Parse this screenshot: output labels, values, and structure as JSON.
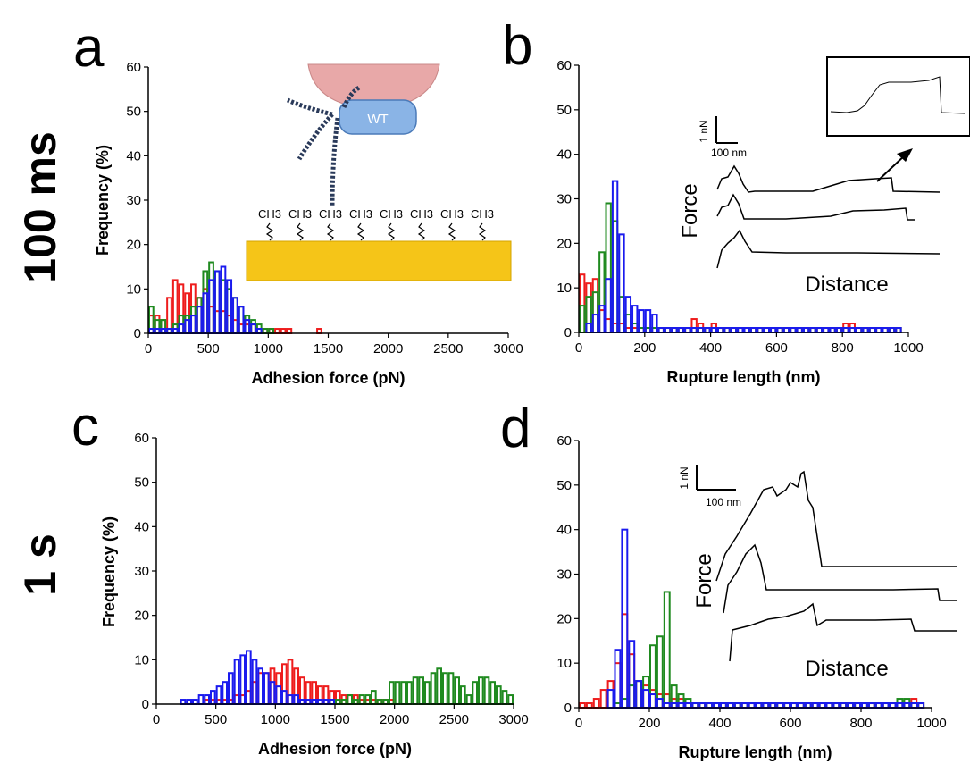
{
  "rows": {
    "top": "100 ms",
    "bottom": "1 s"
  },
  "colors": {
    "red": "#ee1c1c",
    "green": "#1f8a1f",
    "blue": "#1a1aee"
  },
  "chart_data": [
    {
      "id": "a",
      "letter": "a",
      "type": "bar",
      "xlabel": "Adhesion force (pN)",
      "ylabel": "Frequency (%)",
      "xlim": [
        0,
        3000
      ],
      "ylim": [
        0,
        60
      ],
      "xticks": [
        0,
        500,
        1000,
        1500,
        2000,
        2500,
        3000
      ],
      "yticks": [
        0,
        10,
        20,
        30,
        40,
        50,
        60
      ],
      "bin_width": 50,
      "series": [
        {
          "color": "red",
          "start": 0,
          "values": [
            4,
            4,
            3,
            8,
            12,
            11,
            9,
            11,
            8,
            10,
            6,
            5,
            5,
            4,
            3,
            2,
            2,
            2,
            1,
            1,
            1,
            1,
            1,
            1,
            0,
            0,
            0,
            0,
            1,
            0,
            0
          ]
        },
        {
          "color": "green",
          "start": 0,
          "values": [
            6,
            3,
            3,
            1,
            2,
            4,
            4,
            6,
            8,
            14,
            16,
            14,
            12,
            10,
            8,
            6,
            4,
            3,
            2,
            1,
            1
          ]
        },
        {
          "color": "blue",
          "start": 0,
          "values": [
            1,
            1,
            1,
            1,
            1,
            2,
            3,
            4,
            6,
            9,
            12,
            14,
            15,
            12,
            8,
            6,
            3,
            2,
            1
          ]
        }
      ],
      "inset": {
        "protein_label": "WT",
        "chem_label": "CH3"
      }
    },
    {
      "id": "b",
      "letter": "b",
      "type": "bar",
      "xlabel": "Rupture length (nm)",
      "ylabel": "",
      "xlim": [
        0,
        1000
      ],
      "ylim": [
        0,
        60
      ],
      "xticks": [
        0,
        200,
        400,
        600,
        800,
        1000
      ],
      "yticks": [
        0,
        10,
        20,
        30,
        40,
        50,
        60
      ],
      "bin_width": 20,
      "series": [
        {
          "color": "red",
          "start": 0,
          "values": [
            13,
            11,
            12,
            5,
            3,
            2,
            2,
            1,
            1,
            1,
            1,
            1,
            1,
            1,
            1,
            1,
            1,
            3,
            2,
            1,
            2,
            1,
            1,
            1,
            1,
            1,
            1,
            1,
            1,
            1,
            1,
            1,
            1,
            1,
            1,
            1,
            1,
            1,
            1,
            1,
            2,
            2,
            1,
            1,
            1,
            1,
            1,
            1,
            1
          ]
        },
        {
          "color": "green",
          "start": 0,
          "values": [
            6,
            8,
            9,
            18,
            29,
            25,
            8,
            4,
            2,
            1,
            1,
            1,
            1,
            1,
            1,
            1,
            1,
            1,
            1,
            1,
            1,
            1,
            1,
            1,
            1,
            1,
            1,
            1,
            1,
            1,
            1,
            1,
            1,
            1,
            1,
            1,
            1,
            1,
            1,
            1,
            1,
            1,
            1,
            1,
            1,
            1,
            1,
            1,
            1
          ]
        },
        {
          "color": "blue",
          "start": 0,
          "values": [
            0,
            2,
            4,
            6,
            12,
            34,
            22,
            8,
            6,
            5,
            5,
            4,
            1,
            1,
            1,
            1,
            1,
            1,
            1,
            1,
            1,
            1,
            1,
            1,
            1,
            1,
            1,
            1,
            1,
            1,
            1,
            1,
            1,
            1,
            1,
            1,
            1,
            1,
            1,
            1,
            1,
            1,
            1,
            1,
            1,
            1,
            1,
            1,
            1
          ]
        }
      ],
      "inset": {
        "force_label": "Force",
        "distance_label": "Distance",
        "scale_y": "1 nN",
        "scale_x": "100 nm"
      }
    },
    {
      "id": "c",
      "letter": "c",
      "type": "bar",
      "xlabel": "Adhesion force (pN)",
      "ylabel": "Frequency (%)",
      "xlim": [
        0,
        3000
      ],
      "ylim": [
        0,
        60
      ],
      "xticks": [
        0,
        500,
        1000,
        1500,
        2000,
        2500,
        3000
      ],
      "yticks": [
        0,
        10,
        20,
        30,
        40,
        50,
        60
      ],
      "bin_width": 50,
      "series": [
        {
          "color": "red",
          "start": 0,
          "values": [
            0,
            0,
            0,
            0,
            0,
            0,
            0,
            0,
            1,
            1,
            1,
            1,
            1,
            2,
            2,
            3,
            5,
            7,
            7,
            8,
            7,
            9,
            10,
            8,
            6,
            5,
            5,
            4,
            4,
            3,
            3,
            2,
            2,
            2,
            1,
            1,
            1,
            1,
            1,
            1,
            0,
            0
          ]
        },
        {
          "color": "green",
          "start": 0,
          "values": [
            0,
            0,
            0,
            0,
            0,
            0,
            0,
            0,
            0,
            0,
            0,
            0,
            0,
            0,
            0,
            0,
            0,
            0,
            0,
            0,
            0,
            0,
            0,
            0,
            0,
            0,
            0,
            0,
            0,
            1,
            1,
            1,
            2,
            1,
            2,
            2,
            3,
            1,
            1,
            5,
            5,
            5,
            5,
            6,
            6,
            5,
            7,
            8,
            7,
            7,
            6,
            4,
            2,
            5,
            6,
            6,
            5,
            4,
            3,
            2
          ]
        },
        {
          "color": "blue",
          "start": 0,
          "values": [
            0,
            0,
            0,
            0,
            1,
            1,
            1,
            2,
            2,
            3,
            4,
            5,
            7,
            10,
            11,
            12,
            10,
            8,
            7,
            5,
            4,
            3,
            2,
            2,
            1,
            1,
            1,
            1,
            1,
            1,
            0,
            0
          ]
        }
      ]
    },
    {
      "id": "d",
      "letter": "d",
      "type": "bar",
      "xlabel": "Rupture length (nm)",
      "ylabel": "",
      "xlim": [
        0,
        1000
      ],
      "ylim": [
        0,
        60
      ],
      "xticks": [
        0,
        200,
        400,
        600,
        800,
        1000
      ],
      "yticks": [
        0,
        10,
        20,
        30,
        40,
        50,
        60
      ],
      "bin_width": 20,
      "series": [
        {
          "color": "red",
          "start": 0,
          "values": [
            1,
            1,
            2,
            4,
            6,
            10,
            21,
            12,
            6,
            5,
            4,
            3,
            3,
            2,
            2,
            1,
            1,
            1,
            1,
            1,
            1,
            1,
            1,
            1,
            1,
            1,
            1,
            1,
            1,
            1,
            1,
            1,
            1,
            1,
            1,
            1,
            1,
            1,
            1,
            1,
            1,
            1,
            1,
            1,
            1,
            1,
            1,
            2,
            1
          ]
        },
        {
          "color": "green",
          "start": 0,
          "values": [
            0,
            0,
            0,
            0,
            0,
            1,
            2,
            5,
            6,
            7,
            14,
            16,
            26,
            5,
            3,
            2,
            1,
            1,
            1,
            1,
            1,
            1,
            1,
            1,
            1,
            1,
            1,
            1,
            1,
            1,
            1,
            1,
            1,
            1,
            1,
            1,
            1,
            1,
            1,
            1,
            1,
            1,
            1,
            1,
            1,
            2,
            2,
            1,
            1
          ]
        },
        {
          "color": "blue",
          "start": 0,
          "values": [
            0,
            0,
            0,
            0,
            4,
            13,
            40,
            15,
            6,
            4,
            3,
            2,
            1,
            1,
            1,
            1,
            1,
            1,
            1,
            1,
            1,
            1,
            1,
            1,
            1,
            1,
            1,
            1,
            1,
            1,
            1,
            1,
            1,
            1,
            1,
            1,
            1,
            1,
            1,
            1,
            1,
            1,
            1,
            1,
            1,
            1,
            1,
            1,
            1
          ]
        }
      ],
      "inset": {
        "force_label": "Force",
        "distance_label": "Distance",
        "scale_y": "1 nN",
        "scale_x": "100 nm"
      }
    }
  ]
}
